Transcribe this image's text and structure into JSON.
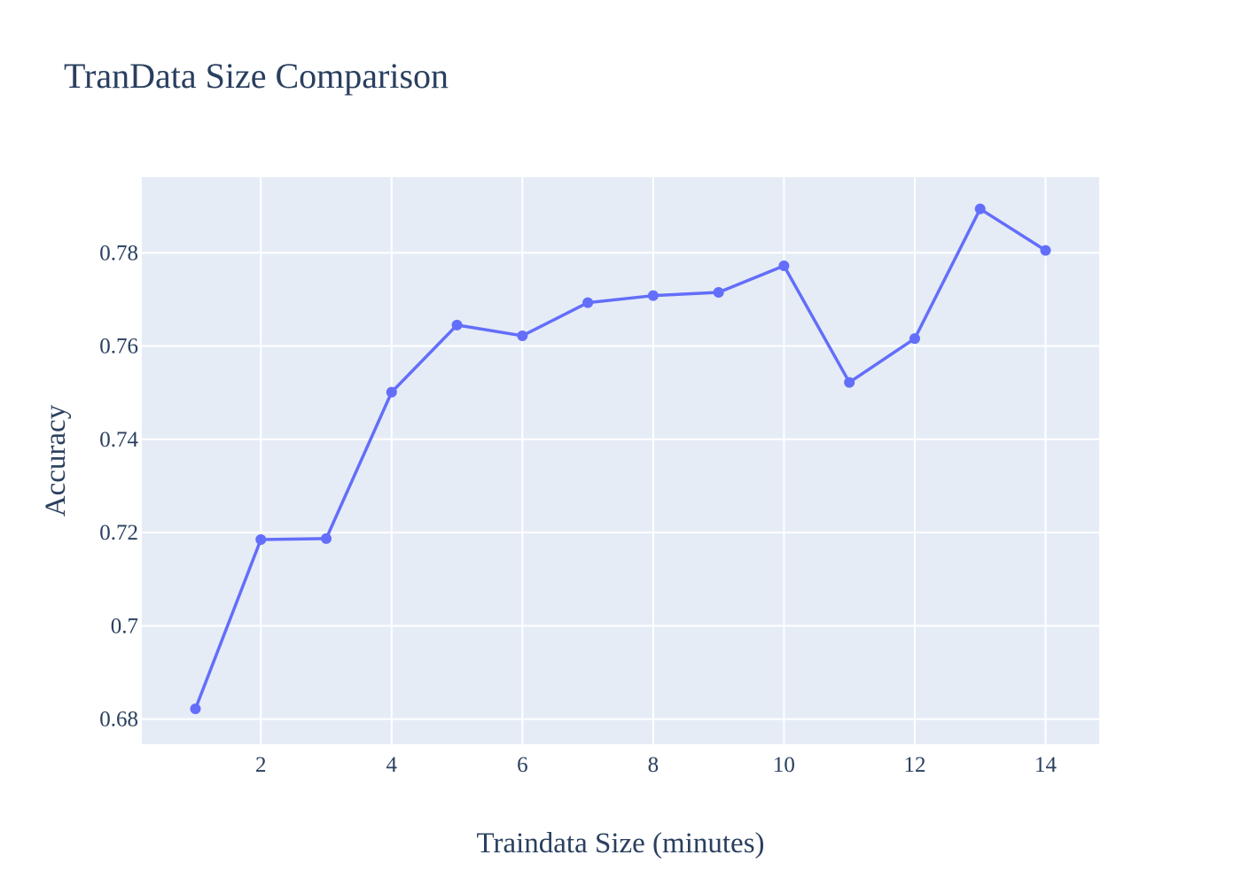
{
  "chart_data": {
    "type": "line",
    "title": "TranData Size Comparison",
    "xlabel": "Traindata Size (minutes)",
    "ylabel": "Accuracy",
    "x": [
      1,
      2,
      3,
      4,
      5,
      6,
      7,
      8,
      9,
      10,
      11,
      12,
      13,
      14
    ],
    "series": [
      {
        "values": [
          0.6822,
          0.7185,
          0.7187,
          0.7501,
          0.7645,
          0.7622,
          0.7693,
          0.7708,
          0.7715,
          0.7772,
          0.7522,
          0.7616,
          0.7894,
          0.7805
        ]
      }
    ],
    "xlim": [
      0.18,
      14.82
    ],
    "ylim": [
      0.6746,
      0.7962
    ],
    "xticks": [
      2,
      4,
      6,
      8,
      10,
      12,
      14
    ],
    "xtick_labels": [
      "2",
      "4",
      "6",
      "8",
      "10",
      "12",
      "14"
    ],
    "yticks": [
      0.68,
      0.7,
      0.72,
      0.74,
      0.76,
      0.78
    ],
    "ytick_labels": [
      "0.68",
      "0.7",
      "0.72",
      "0.74",
      "0.76",
      "0.78"
    ],
    "grid": true,
    "legend": "none",
    "colors": {
      "line": "#636efa",
      "plot_background": "#e5ecf6",
      "grid": "#ffffff",
      "text": "#2a3f5f"
    }
  }
}
